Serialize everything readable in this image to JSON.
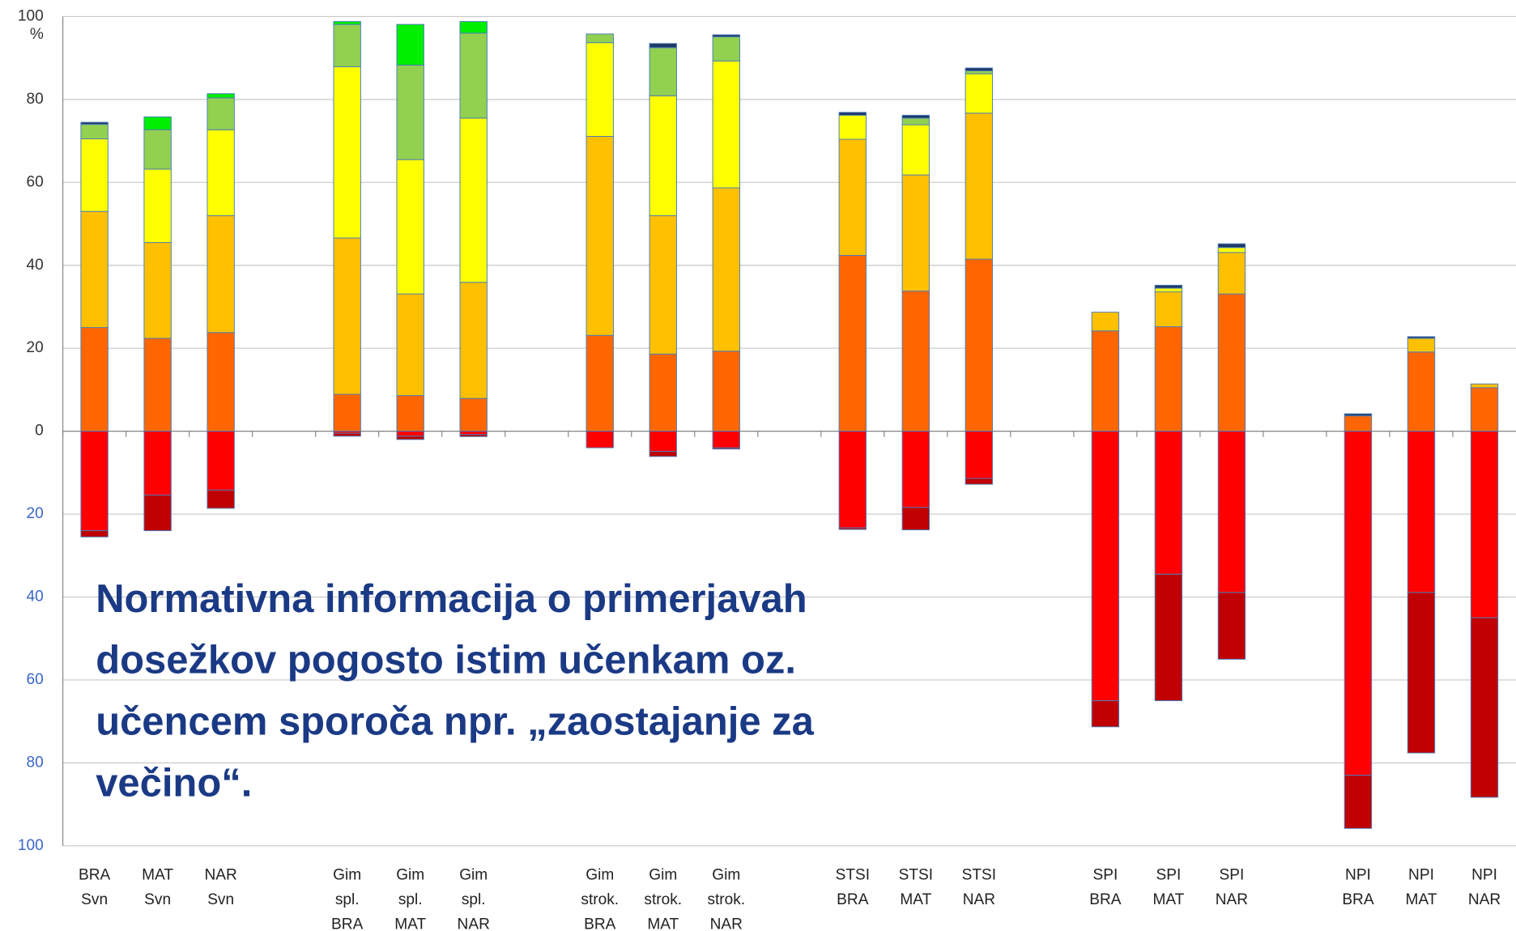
{
  "chart_data": {
    "type": "stacked_bar",
    "y_unit": "%",
    "annotation": [
      "Normativna informacija o primerjavah",
      "dosežkov pogosto istim učenkam oz.",
      "učencem sporoča npr. „zaostajanje za",
      "večino“."
    ],
    "categories": [
      [
        "BRA",
        "Svn"
      ],
      [
        "MAT",
        "Svn"
      ],
      [
        "NAR",
        "Svn"
      ],
      null,
      [
        "Gim",
        "spl.",
        "BRA"
      ],
      [
        "Gim",
        "spl.",
        "MAT"
      ],
      [
        "Gim",
        "spl.",
        "NAR"
      ],
      null,
      [
        "Gim",
        "strok.",
        "BRA"
      ],
      [
        "Gim",
        "strok.",
        "MAT"
      ],
      [
        "Gim",
        "strok.",
        "NAR"
      ],
      null,
      [
        "STSI",
        "BRA"
      ],
      [
        "STSI",
        "MAT"
      ],
      [
        "STSI",
        "NAR"
      ],
      null,
      [
        "SPI",
        "BRA"
      ],
      [
        "SPI",
        "MAT"
      ],
      [
        "SPI",
        "NAR"
      ],
      null,
      [
        "NPI",
        "BRA"
      ],
      [
        "NPI",
        "MAT"
      ],
      [
        "NPI",
        "NAR"
      ]
    ],
    "series": [
      {
        "color": "#ff6600",
        "values": [
          25,
          22.4,
          23.8,
          null,
          8.9,
          8.6,
          7.9,
          null,
          23.1,
          18.6,
          19.3,
          null,
          42.4,
          33.8,
          41.5,
          null,
          24.2,
          25.2,
          33.1,
          null,
          3.7,
          19.1,
          10.5
        ]
      },
      {
        "color": "#ffc000",
        "values": [
          28,
          23.1,
          28.2,
          null,
          37.7,
          24.5,
          28,
          null,
          48,
          33.4,
          39.4,
          null,
          28,
          28,
          35.2,
          null,
          4.5,
          8.4,
          10,
          null,
          0,
          3.3,
          0.9
        ]
      },
      {
        "color": "#ffff00",
        "values": [
          17.5,
          17.7,
          20.7,
          null,
          41.3,
          32.4,
          39.6,
          null,
          22.6,
          28.9,
          30.6,
          null,
          5.8,
          12.1,
          9.5,
          null,
          0,
          0.9,
          1.2,
          null,
          0,
          0,
          0
        ]
      },
      {
        "color": "#92d050",
        "values": [
          3.5,
          9.5,
          7.7,
          null,
          10.2,
          22.8,
          20.5,
          null,
          2.1,
          11.6,
          5.8,
          null,
          0,
          1.6,
          0.7,
          null,
          0,
          0,
          0,
          null,
          0,
          0,
          0
        ]
      },
      {
        "color": "#00ee00",
        "values": [
          0,
          3.1,
          1,
          null,
          0.7,
          9.8,
          2.8,
          null,
          0,
          0,
          0,
          null,
          0,
          0,
          0,
          null,
          0,
          0,
          0,
          null,
          0,
          0,
          0
        ]
      },
      {
        "color": "#1f3864",
        "values": [
          0.5,
          0,
          0,
          null,
          0,
          0,
          0,
          null,
          0,
          1,
          0.5,
          null,
          0.7,
          0.7,
          0.7,
          null,
          0,
          0.7,
          0.9,
          null,
          0.5,
          0.4,
          0
        ]
      },
      {
        "color": "#ff0000",
        "values": [
          -24,
          -15.4,
          -14.2,
          null,
          -0.5,
          -1.2,
          -0.8,
          null,
          -4,
          -4.9,
          -4,
          null,
          -23.3,
          -18.4,
          -11.4,
          null,
          -65,
          -34.5,
          -38.9,
          null,
          -83,
          -38.9,
          -45
        ]
      },
      {
        "color": "#c00000",
        "values": [
          -1.5,
          -8.6,
          -4.4,
          null,
          -0.7,
          -0.8,
          -0.5,
          null,
          0,
          -1.2,
          -0.3,
          null,
          -0.4,
          -5.4,
          -1.4,
          null,
          -6.3,
          -30.5,
          -16.1,
          null,
          -12.8,
          -38.7,
          -43.3
        ]
      }
    ],
    "ylim": [
      -100,
      100
    ],
    "yticks": [
      {
        "value": -100,
        "label": "100"
      },
      {
        "value": -80,
        "label": "80"
      },
      {
        "value": -60,
        "label": "60"
      },
      {
        "value": -40,
        "label": "40"
      },
      {
        "value": -20,
        "label": "20"
      },
      0,
      20,
      40,
      60,
      80,
      100
    ],
    "grid": true
  }
}
